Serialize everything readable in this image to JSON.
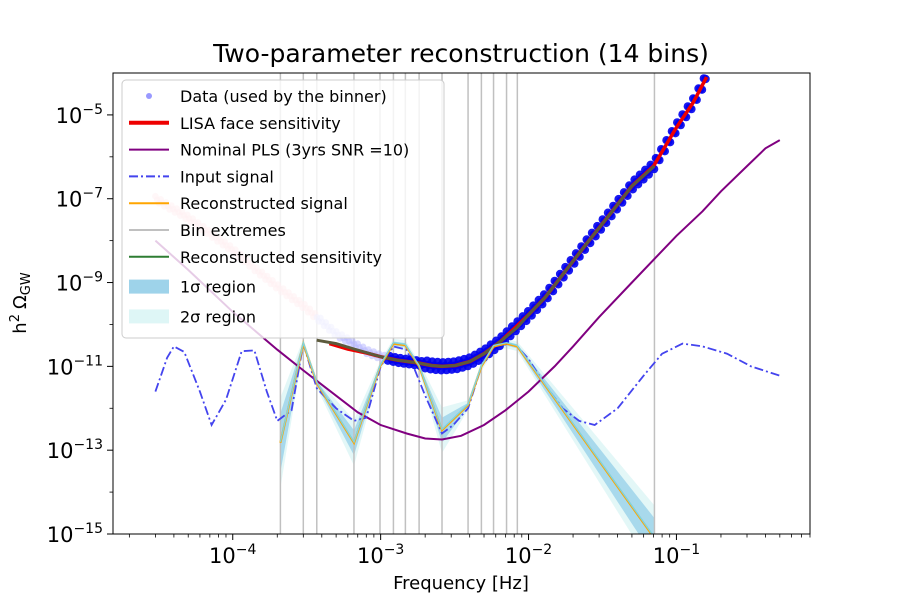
{
  "chart_data": {
    "type": "line",
    "title": "Two-parameter reconstruction (14 bins)",
    "xlabel": "Frequency [Hz]",
    "ylabel": "h^2 Ω_GW",
    "ylabel_parts": {
      "main": "h",
      "sup": "2",
      "sym": "Ω",
      "sub": "GW"
    },
    "xscale": "log",
    "yscale": "log",
    "xlim": [
      1.55e-05,
      0.8
    ],
    "ylim": [
      1e-15,
      0.0001
    ],
    "x_ticks": [
      {
        "value": 0.0001,
        "base": "10",
        "exp": "−4"
      },
      {
        "value": 0.001,
        "base": "10",
        "exp": "−3"
      },
      {
        "value": 0.01,
        "base": "10",
        "exp": "−2"
      },
      {
        "value": 0.1,
        "base": "10",
        "exp": "−1"
      }
    ],
    "y_ticks": [
      {
        "value": 1e-15,
        "base": "10",
        "exp": "−15"
      },
      {
        "value": 1e-13,
        "base": "10",
        "exp": "−13"
      },
      {
        "value": 1e-11,
        "base": "10",
        "exp": "−11"
      },
      {
        "value": 1e-09,
        "base": "10",
        "exp": "−9"
      },
      {
        "value": 1e-07,
        "base": "10",
        "exp": "−7"
      },
      {
        "value": 1e-05,
        "base": "10",
        "exp": "−5"
      }
    ],
    "legend_position": "top-left",
    "legend": [
      {
        "key": "data",
        "label": "Data (used by the binner)",
        "color": "#3333ff",
        "style": "marker"
      },
      {
        "key": "lisa",
        "label": "LISA face sensitivity",
        "color": "#ee0000",
        "style": "thick"
      },
      {
        "key": "pls",
        "label": "Nominal PLS (3yrs SNR =10)",
        "color": "#800080",
        "style": "solid"
      },
      {
        "key": "input",
        "label": "Input signal",
        "color": "#4444ee",
        "style": "dashdot"
      },
      {
        "key": "recon",
        "label": "Reconstructed signal",
        "color": "#ffa500",
        "style": "solid"
      },
      {
        "key": "bins",
        "label": "Bin extremes",
        "color": "#c0c0c0",
        "style": "solid"
      },
      {
        "key": "recsens",
        "label": "Reconstructed sensitivity",
        "color": "#2e7d32",
        "style": "solid"
      },
      {
        "key": "sigma1",
        "label": "1σ region",
        "color": "#9ed3ea",
        "style": "patch"
      },
      {
        "key": "sigma2",
        "label": "2σ region",
        "color": "#def6f6",
        "style": "patch"
      }
    ],
    "bin_edges": [
      0.00021,
      0.0003,
      0.00037,
      0.00066,
      0.00099,
      0.00122,
      0.00147,
      0.00182,
      0.0026,
      0.0039,
      0.0048,
      0.0058,
      0.0071,
      0.0084,
      0.071
    ],
    "series": [
      {
        "name": "LISA face sensitivity",
        "x": [
          0.00045,
          0.0006,
          0.0008,
          0.001,
          0.0013,
          0.0018,
          0.0022,
          0.0026,
          0.0032,
          0.004,
          0.005,
          0.0065,
          0.008,
          0.01,
          0.013,
          0.018,
          0.025,
          0.035,
          0.05,
          0.07,
          0.1,
          0.13,
          0.16
        ],
        "y": [
          3.5e-11,
          2.6e-11,
          2.1e-11,
          1.7e-11,
          1.4e-11,
          1.2e-11,
          1.05e-11,
          1e-11,
          1.05e-11,
          1.3e-11,
          2e-11,
          4e-11,
          8e-11,
          1.7e-10,
          4.5e-10,
          2e-09,
          9e-09,
          4e-08,
          2e-07,
          6e-07,
          5e-06,
          2e-05,
          8e-05
        ]
      },
      {
        "name": "Data (used by the binner)",
        "x": [
          3e-05,
          5e-05,
          0.0001,
          0.00015,
          0.0002,
          0.0003,
          0.0005,
          0.0008,
          0.001,
          0.0013,
          0.0018,
          0.0022,
          0.0026,
          0.0032,
          0.004,
          0.005,
          0.0065,
          0.008,
          0.01,
          0.013,
          0.018,
          0.025,
          0.035,
          0.05,
          0.07,
          0.1,
          0.13,
          0.16
        ],
        "y": [
          1e-07,
          3.5e-08,
          6e-09,
          1.8e-09,
          8e-10,
          2.8e-10,
          6e-11,
          2.3e-11,
          1.7e-11,
          1.4e-11,
          1.2e-11,
          1.05e-11,
          1e-11,
          1.05e-11,
          1.3e-11,
          2e-11,
          4e-11,
          8e-11,
          1.7e-10,
          4.5e-10,
          2e-09,
          9e-09,
          4e-08,
          2e-07,
          6e-07,
          5e-06,
          2e-05,
          8e-05
        ]
      },
      {
        "name": "Nominal PLS (3yrs SNR =10)",
        "x": [
          3e-05,
          5e-05,
          0.0001,
          0.0002,
          0.0003,
          0.0005,
          0.0007,
          0.001,
          0.0015,
          0.002,
          0.0026,
          0.0035,
          0.005,
          0.007,
          0.01,
          0.015,
          0.02,
          0.03,
          0.05,
          0.1,
          0.15,
          0.2,
          0.3,
          0.4,
          0.5
        ],
        "y": [
          1e-08,
          2e-09,
          2e-10,
          2.5e-11,
          8e-12,
          2e-12,
          8e-13,
          4e-13,
          2.5e-13,
          1.9e-13,
          1.8e-13,
          2.2e-13,
          4e-13,
          9e-13,
          2.5e-12,
          1e-11,
          3e-11,
          1.5e-10,
          1e-09,
          1.3e-08,
          5e-08,
          1.5e-07,
          6e-07,
          1.6e-06,
          2.5e-06
        ]
      },
      {
        "name": "Input signal",
        "x": [
          3e-05,
          3.6e-05,
          4e-05,
          4.7e-05,
          6e-05,
          7.2e-05,
          9e-05,
          0.000115,
          0.00014,
          0.00017,
          0.0002,
          0.00025,
          0.0003,
          0.00037,
          0.0005,
          0.00066,
          0.0008,
          0.001,
          0.00122,
          0.0015,
          0.002,
          0.0026,
          0.0031,
          0.0039,
          0.0048,
          0.0058,
          0.0071,
          0.0084,
          0.01,
          0.013,
          0.017,
          0.022,
          0.028,
          0.04,
          0.06,
          0.08,
          0.11,
          0.15,
          0.22,
          0.32,
          0.5
        ],
        "y": [
          2.5e-12,
          1.6e-11,
          3e-11,
          2.2e-11,
          2.5e-12,
          4e-13,
          1.6e-12,
          2.3e-11,
          2.4e-11,
          2.5e-12,
          5e-13,
          9e-13,
          3.5e-11,
          3e-12,
          1e-12,
          5e-13,
          6e-13,
          1e-11,
          3e-11,
          2.5e-11,
          2e-12,
          2.5e-13,
          4e-13,
          1e-12,
          1e-11,
          3e-11,
          3.5e-11,
          3e-11,
          1.5e-11,
          3.5e-12,
          1e-12,
          5e-13,
          4e-13,
          1e-12,
          6e-12,
          2e-11,
          3.5e-11,
          3e-11,
          2e-11,
          1e-11,
          6e-12
        ]
      },
      {
        "name": "Reconstructed signal",
        "x": [
          0.00021,
          0.0003,
          0.00037,
          0.00066,
          0.00099,
          0.00122,
          0.00147,
          0.00182,
          0.0026,
          0.0039,
          0.0048,
          0.0058,
          0.0071,
          0.0084,
          0.071
        ],
        "y": [
          1.5e-13,
          3.5e-11,
          4e-12,
          1.5e-13,
          1e-11,
          3.5e-11,
          3.2e-11,
          1e-11,
          3e-13,
          1.2e-12,
          1e-11,
          3e-11,
          3.5e-11,
          3e-11,
          8e-16
        ]
      },
      {
        "name": "Reconstructed sensitivity",
        "x": [
          0.00037,
          0.0005,
          0.00066,
          0.001,
          0.0013,
          0.0018,
          0.0022,
          0.0026,
          0.0032,
          0.004,
          0.005,
          0.0065,
          0.0084,
          0.01,
          0.013,
          0.018,
          0.025,
          0.035,
          0.05,
          0.071
        ],
        "y": [
          4.2e-11,
          3.5e-11,
          2.6e-11,
          1.7e-11,
          1.4e-11,
          1.2e-11,
          1.05e-11,
          1e-11,
          1.05e-11,
          1.3e-11,
          2e-11,
          4e-11,
          8.5e-11,
          1.7e-10,
          4.5e-10,
          2e-09,
          9e-09,
          4e-08,
          2e-07,
          6e-07
        ]
      }
    ]
  }
}
